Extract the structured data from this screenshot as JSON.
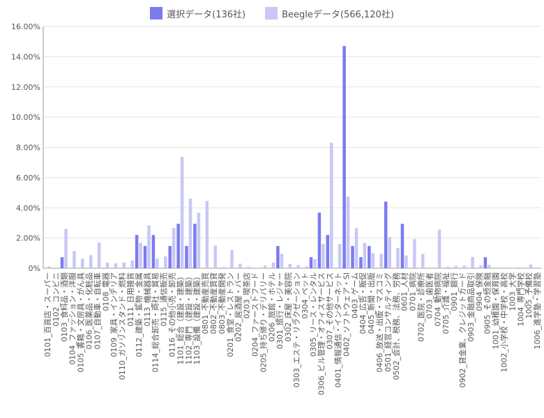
{
  "colors": {
    "selected": "#7b7bf0",
    "beegle": "#c8c8f5",
    "grid": "#e3e3e3",
    "axis": "#999999",
    "text": "#555555"
  },
  "chart_data": {
    "type": "bar",
    "title": "",
    "xlabel": "",
    "ylabel": "",
    "ylim": [
      0,
      16
    ],
    "yticks": [
      0,
      2,
      4,
      6,
      8,
      10,
      12,
      14,
      16
    ],
    "ytick_labels": [
      "0%",
      "2.00%",
      "4.00%",
      "6.00%",
      "8.00%",
      "10.00%",
      "12.00%",
      "14.00%",
      "16.00%"
    ],
    "grid": true,
    "legend": "top",
    "categories": [
      "0101_百貨店・スーパー",
      "0102_コンビニ",
      "0103_食料品・酒類",
      "0104_ファッション・洋服",
      "0105_書籍・文房具・がん具",
      "0106_医薬品・化粧品",
      "0107_自動車・自転車",
      "0108_電器",
      "0109_家具・インテリア",
      "0110_ガソリンスタンド・燃料",
      "0111_日用雑貨",
      "0112_建築・鉱物・金属",
      "0113_機械器具",
      "0114_総合卸売・商社・貿易",
      "0115_通信販売",
      "0116_その他小売・卸売",
      "1101_総合（建設・建築）",
      "1102_専門（建設・建築）",
      "1103_設備（建設・建築）",
      "0801_不動産売買",
      "0802_不動産賃貸",
      "0803_不動産開発",
      "0201_食堂・レストラン",
      "0202_居酒屋・バー",
      "0203_喫茶店",
      "0204_ファーストフード",
      "0205_持ち帰り・デリバリー",
      "0206_旅館・ホテル",
      "0301_旅行・レジャー",
      "0302_床屋・美容院",
      "0303_エステ・リラクゼーション",
      "0304_ペット",
      "0305_リース・レンタル",
      "0306_ビル管理・オフィスサービス",
      "0307_その他サービス",
      "0401_情報通信・インターネット",
      "0402_ソフトウェア・SI",
      "0403_ゲーム",
      "0404_広告・販促",
      "0405_新聞・出版",
      "0406_放送・出版・マスコミ",
      "0501_経営コンサルティング",
      "0502_会計、税務、法務、労務",
      "0601_人材",
      "0701_病院",
      "0702_医院・診療所",
      "0703_歯医者",
      "0704_動物病院",
      "0705_介護・福祉",
      "0901_銀行",
      "0902_貸金業、クレジットカード",
      "0903_金融商品取引",
      "0904_保険",
      "0905_その他金融",
      "1001_幼稚園・保育園",
      "1002_小学校・中学校・高校",
      "1003_大学",
      "1004_専門学校",
      "1005_予備校",
      "1006_進学塾・学習塾"
    ],
    "series": [
      {
        "name": "選択データ(136社)",
        "values": [
          0,
          0,
          0.73,
          0,
          0,
          0,
          0,
          0,
          0,
          0,
          0,
          2.2,
          1.47,
          2.2,
          0,
          1.47,
          2.94,
          1.47,
          2.94,
          0,
          0,
          0,
          0,
          0,
          0,
          0,
          0,
          0,
          1.47,
          0,
          0,
          0,
          0.73,
          3.68,
          2.2,
          0,
          14.71,
          1.47,
          0.73,
          1.47,
          0,
          4.41,
          0,
          2.94,
          0,
          0,
          0,
          0,
          0,
          0,
          0,
          0,
          0,
          0.73,
          0,
          0,
          0,
          0,
          0,
          0
        ]
      },
      {
        "name": "Beegleデータ(566,120社)",
        "values": [
          0.12,
          0.05,
          2.6,
          1.13,
          0.63,
          0.86,
          1.7,
          0.37,
          0.33,
          0.38,
          0.52,
          1.68,
          2.83,
          0.62,
          0.78,
          2.67,
          7.37,
          4.61,
          3.67,
          4.45,
          1.5,
          0.08,
          1.2,
          0.3,
          0.1,
          0.02,
          0.17,
          0.37,
          0.95,
          0.28,
          0.2,
          0.12,
          0.6,
          1.6,
          8.3,
          1.6,
          4.75,
          2.65,
          1.68,
          1.0,
          0.95,
          2.07,
          1.33,
          0.85,
          1.92,
          0.95,
          0,
          2.55,
          0.1,
          0.15,
          0.18,
          0.75,
          0.2,
          0.22,
          0.05,
          0.05,
          0.02,
          0.05,
          0.25,
          0
        ]
      }
    ]
  }
}
